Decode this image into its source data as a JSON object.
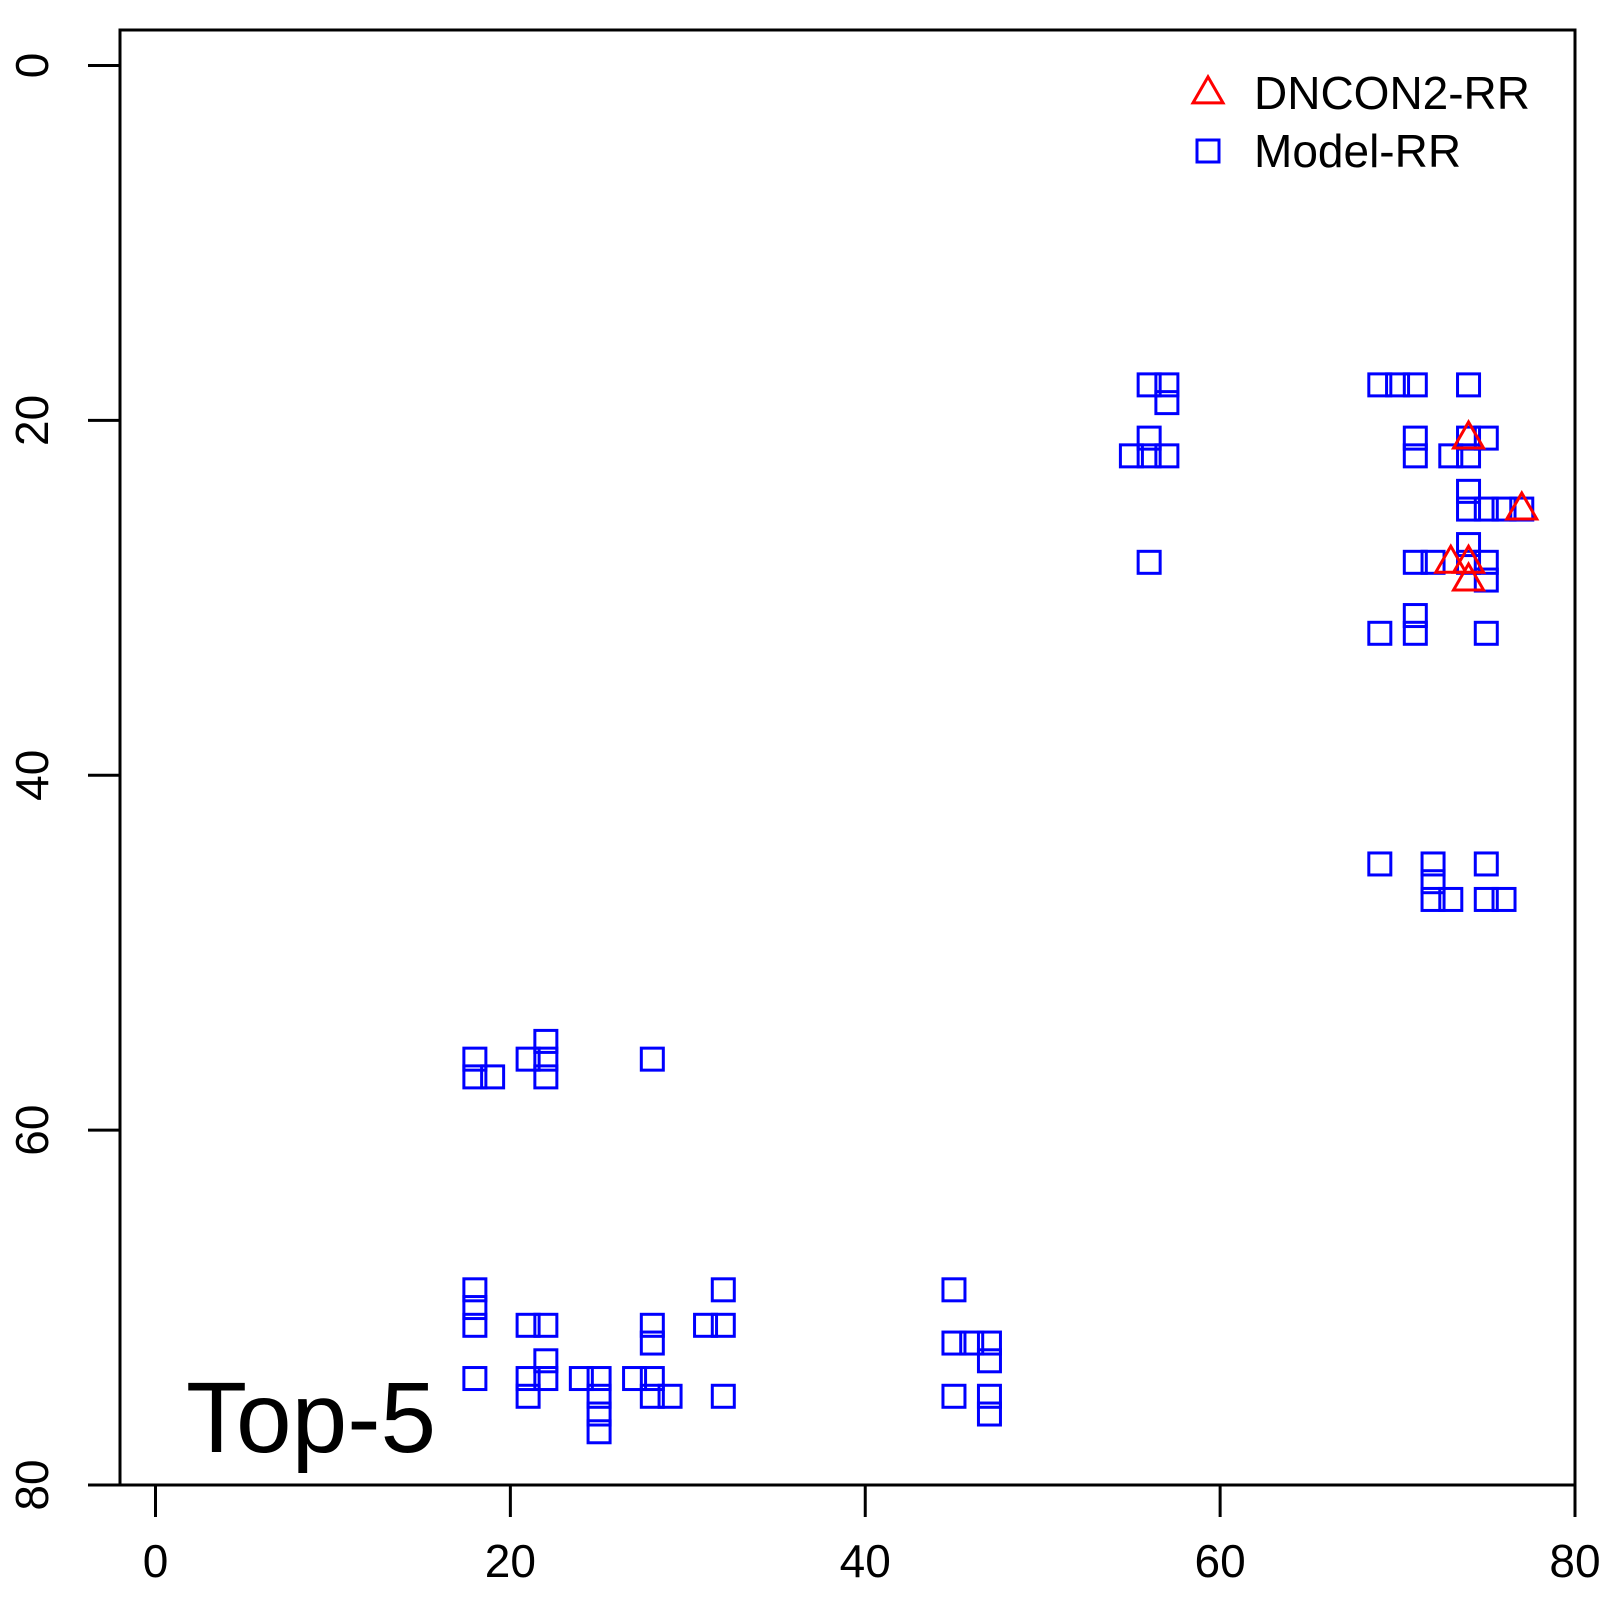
{
  "chart_data": {
    "type": "scatter",
    "title": "",
    "xlabel": "",
    "ylabel": "",
    "xlim": [
      -2,
      80
    ],
    "ylim": [
      80,
      -2
    ],
    "y_reversed": true,
    "x_ticks": [
      "0",
      "20",
      "40",
      "60",
      "80"
    ],
    "y_ticks": [
      "0",
      "20",
      "40",
      "60",
      "80"
    ],
    "x_tick_values": [
      0,
      20,
      40,
      60,
      80
    ],
    "y_tick_values": [
      0,
      20,
      40,
      60,
      80
    ],
    "grid": false,
    "legend_position": "top-right",
    "panel_label": "Top-5",
    "series": [
      {
        "name": "DNCON2-RR",
        "marker": "triangle",
        "color": "#ff0000",
        "points": [
          [
            74,
            21
          ],
          [
            77,
            25
          ],
          [
            73,
            28
          ],
          [
            74,
            28
          ],
          [
            74,
            29
          ]
        ]
      },
      {
        "name": "Model-RR",
        "marker": "square",
        "color": "#0000ff",
        "points": [
          [
            56,
            18
          ],
          [
            57,
            18
          ],
          [
            57,
            19
          ],
          [
            56,
            21
          ],
          [
            55,
            22
          ],
          [
            56,
            22
          ],
          [
            57,
            22
          ],
          [
            56,
            28
          ],
          [
            69,
            18
          ],
          [
            70,
            18
          ],
          [
            71,
            18
          ],
          [
            74,
            18
          ],
          [
            71,
            21
          ],
          [
            71,
            22
          ],
          [
            73,
            22
          ],
          [
            74,
            22
          ],
          [
            74,
            21
          ],
          [
            75,
            21
          ],
          [
            74,
            24
          ],
          [
            74,
            25
          ],
          [
            75,
            25
          ],
          [
            76,
            25
          ],
          [
            77,
            25
          ],
          [
            74,
            27
          ],
          [
            71,
            28
          ],
          [
            72,
            28
          ],
          [
            74,
            28
          ],
          [
            75,
            28
          ],
          [
            75,
            29
          ],
          [
            71,
            31
          ],
          [
            69,
            32
          ],
          [
            71,
            32
          ],
          [
            75,
            32
          ],
          [
            69,
            45
          ],
          [
            72,
            45
          ],
          [
            75,
            45
          ],
          [
            72,
            46
          ],
          [
            72,
            47
          ],
          [
            73,
            47
          ],
          [
            75,
            47
          ],
          [
            76,
            47
          ],
          [
            18,
            56
          ],
          [
            18,
            57
          ],
          [
            19,
            57
          ],
          [
            21,
            56
          ],
          [
            22,
            55
          ],
          [
            22,
            56
          ],
          [
            22,
            57
          ],
          [
            28,
            56
          ],
          [
            18,
            69
          ],
          [
            18,
            70
          ],
          [
            18,
            71
          ],
          [
            21,
            71
          ],
          [
            22,
            71
          ],
          [
            32,
            69
          ],
          [
            31,
            71
          ],
          [
            32,
            71
          ],
          [
            28,
            71
          ],
          [
            28,
            72
          ],
          [
            22,
            73
          ],
          [
            18,
            74
          ],
          [
            21,
            74
          ],
          [
            22,
            74
          ],
          [
            24,
            74
          ],
          [
            25,
            74
          ],
          [
            27,
            74
          ],
          [
            28,
            74
          ],
          [
            21,
            75
          ],
          [
            25,
            75
          ],
          [
            28,
            75
          ],
          [
            29,
            75
          ],
          [
            32,
            75
          ],
          [
            25,
            76
          ],
          [
            25,
            77
          ],
          [
            45,
            69
          ],
          [
            45,
            72
          ],
          [
            46,
            72
          ],
          [
            47,
            72
          ],
          [
            47,
            73
          ],
          [
            45,
            75
          ],
          [
            47,
            75
          ],
          [
            47,
            76
          ]
        ]
      }
    ]
  }
}
